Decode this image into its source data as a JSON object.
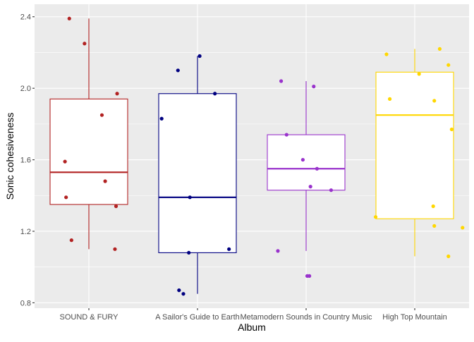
{
  "chart_data": {
    "type": "boxplot",
    "xlabel": "Album",
    "ylabel": "Sonic cohesiveness",
    "ylim": [
      0.77,
      2.47
    ],
    "yticks": [
      "0.8",
      "1.2",
      "1.6",
      "2.0",
      "2.4"
    ],
    "grid": true,
    "legend": "none",
    "categories": [
      "SOUND & FURY",
      "A Sailor's Guide to Earth",
      "Metamodern Sounds in Country Music",
      "High Top Mountain"
    ],
    "colors": [
      "#b22222",
      "#000080",
      "#9932cc",
      "#ffd700"
    ],
    "boxes": [
      {
        "min": 1.1,
        "q1": 1.35,
        "median": 1.53,
        "q3": 1.94,
        "max": 2.39
      },
      {
        "min": 0.85,
        "q1": 1.08,
        "median": 1.39,
        "q3": 1.97,
        "max": 2.18
      },
      {
        "min": 1.09,
        "q1": 1.43,
        "median": 1.55,
        "q3": 1.74,
        "max": 2.04
      },
      {
        "min": 1.06,
        "q1": 1.27,
        "median": 1.85,
        "q3": 2.09,
        "max": 2.22
      }
    ],
    "points": [
      [
        [
          -0.18,
          2.39
        ],
        [
          -0.04,
          2.25
        ],
        [
          -0.22,
          1.59
        ],
        [
          -0.21,
          1.39
        ],
        [
          -0.16,
          1.15
        ],
        [
          0.12,
          1.85
        ],
        [
          0.15,
          1.48
        ],
        [
          0.26,
          1.97
        ],
        [
          0.24,
          1.1
        ],
        [
          0.25,
          1.34
        ]
      ],
      [
        [
          -0.33,
          1.83
        ],
        [
          -0.18,
          2.1
        ],
        [
          0.02,
          2.18
        ],
        [
          0.16,
          1.97
        ],
        [
          -0.07,
          1.39
        ],
        [
          -0.08,
          1.08
        ],
        [
          0.29,
          1.1
        ],
        [
          -0.17,
          0.87
        ],
        [
          -0.13,
          0.85
        ]
      ],
      [
        [
          -0.23,
          2.04
        ],
        [
          0.07,
          2.01
        ],
        [
          -0.18,
          1.74
        ],
        [
          -0.03,
          1.6
        ],
        [
          0.1,
          1.55
        ],
        [
          0.04,
          1.45
        ],
        [
          0.23,
          1.43
        ],
        [
          -0.26,
          1.09
        ],
        [
          0.01,
          0.95
        ],
        [
          0.03,
          0.95
        ]
      ],
      [
        [
          -0.26,
          2.19
        ],
        [
          0.04,
          2.08
        ],
        [
          0.23,
          2.22
        ],
        [
          0.31,
          2.13
        ],
        [
          -0.23,
          1.94
        ],
        [
          0.18,
          1.93
        ],
        [
          0.34,
          1.77
        ],
        [
          -0.36,
          1.28
        ],
        [
          0.17,
          1.34
        ],
        [
          0.18,
          1.23
        ],
        [
          0.44,
          1.22
        ],
        [
          0.31,
          1.06
        ]
      ]
    ]
  }
}
